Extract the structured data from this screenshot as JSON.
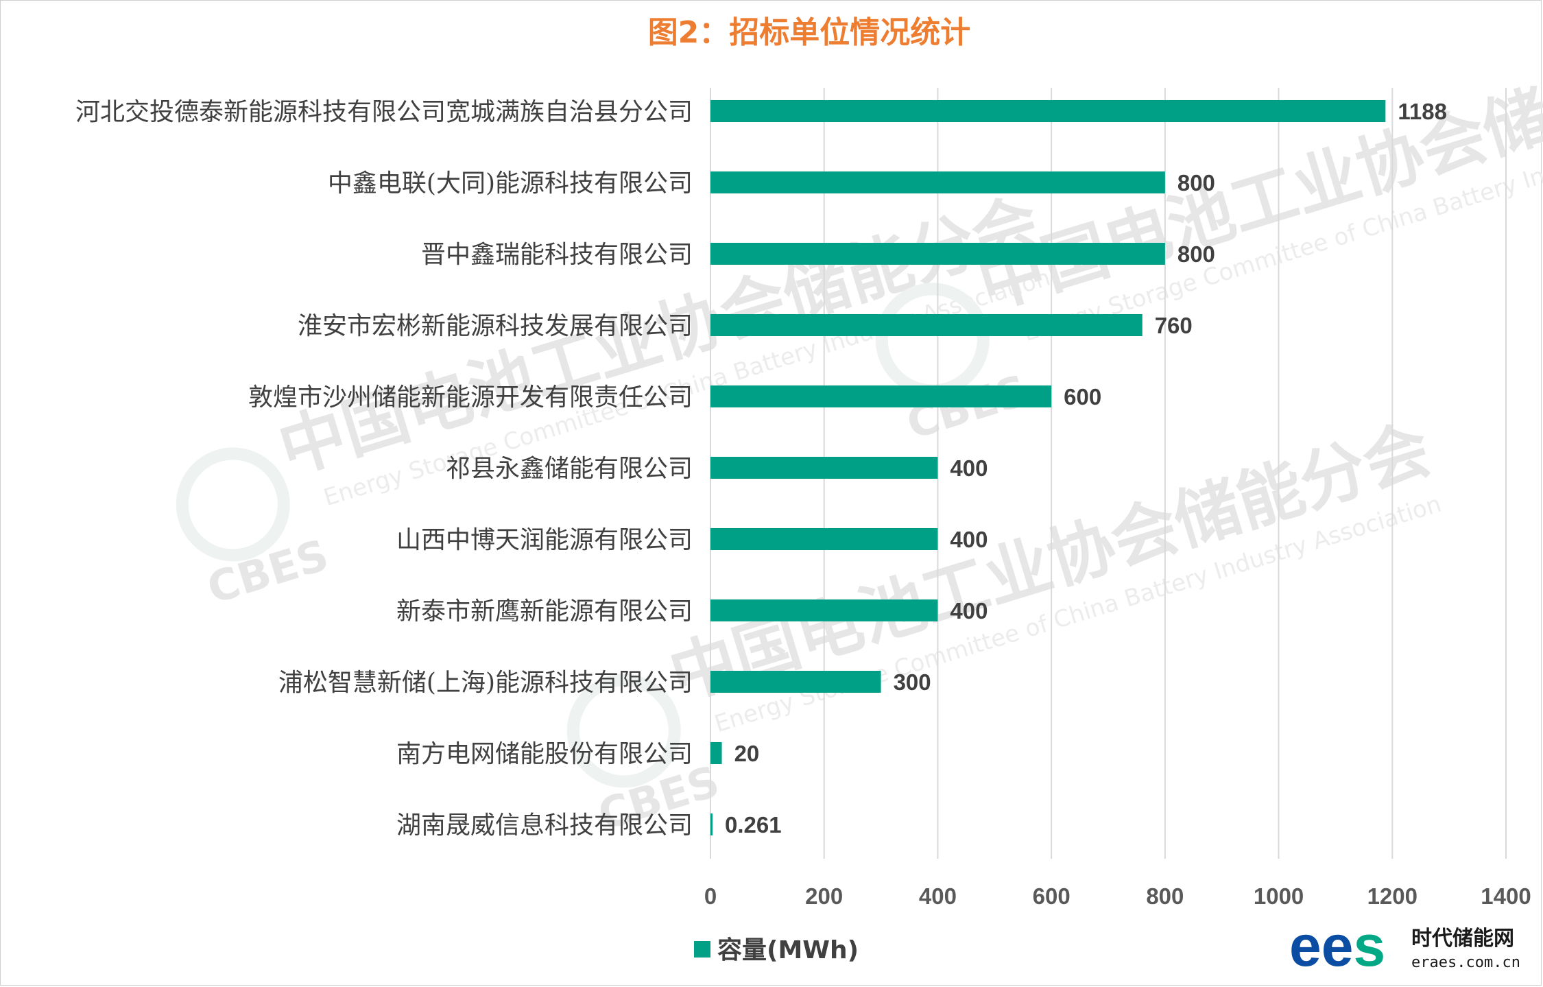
{
  "chart_data": {
    "type": "bar",
    "orientation": "horizontal",
    "title": "图2：招标单位情况统计",
    "categories": [
      "河北交投德泰新能源科技有限公司宽城满族自治县分公司",
      "中鑫电联(大同)能源科技有限公司",
      "晋中鑫瑞能科技有限公司",
      "淮安市宏彬新能源科技发展有限公司",
      "敦煌市沙州储能新能源开发有限责任公司",
      "祁县永鑫储能有限公司",
      "山西中博天润能源有限公司",
      "新泰市新鹰新能源有限公司",
      "浦松智慧新储(上海)能源科技有限公司",
      "南方电网储能股份有限公司",
      "湖南晟威信息科技有限公司"
    ],
    "series": [
      {
        "name": "容量(MWh)",
        "values": [
          1188,
          800,
          800,
          760,
          600,
          400,
          400,
          400,
          300,
          20,
          0.261
        ],
        "labels": [
          "1188",
          "800",
          "800",
          "760",
          "600",
          "400",
          "400",
          "400",
          "300",
          "20",
          "0.261"
        ]
      }
    ],
    "xlim": [
      0,
      1400
    ],
    "xticks": [
      "0",
      "200",
      "400",
      "600",
      "800",
      "1000",
      "1200",
      "1400"
    ],
    "grid": true,
    "legend_position": "bottom-left",
    "colors": {
      "bar": "#00A086",
      "title": "#ED7D31",
      "grid": "#D9D9D9"
    }
  },
  "watermark": {
    "cn": "中国电池工业协会储能分会",
    "en": "Energy Storage Committee of China Battery Industry Association",
    "logo": "CBES"
  },
  "brand": {
    "mark": "ees",
    "name": "时代储能网",
    "url": "eraes.com.cn",
    "colors": {
      "e": "#0A4DA2",
      "s": "#00A886"
    }
  }
}
